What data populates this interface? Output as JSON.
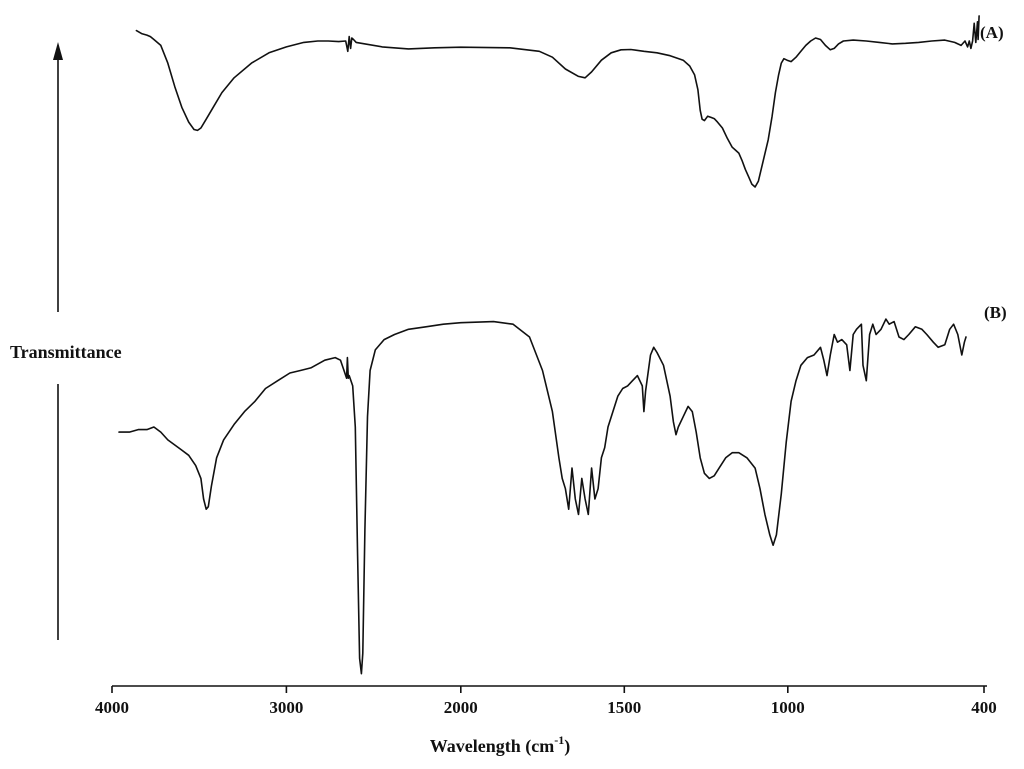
{
  "chart_data": {
    "type": "line",
    "title": "",
    "xlabel_main": "Wavelength (cm",
    "xlabel_sup": "-1",
    "xlabel_close": ")",
    "ylabel": "Transmittance",
    "x_reversed": true,
    "xlim": [
      4000,
      400
    ],
    "xticks": [
      4000,
      3000,
      2000,
      1500,
      1000,
      400
    ],
    "xtick_labels": [
      "4000",
      "3000",
      "2000",
      "1500",
      "1000",
      "400"
    ],
    "x_axis_piecewise": [
      [
        4000,
        0.0
      ],
      [
        2000,
        0.4
      ],
      [
        400,
        1.0
      ]
    ],
    "ylim": [
      0,
      1
    ],
    "grid": false,
    "series": [
      {
        "name": "(A)",
        "points": [
          [
            3860,
            0.93
          ],
          [
            3830,
            0.92
          ],
          [
            3800,
            0.915
          ],
          [
            3780,
            0.91
          ],
          [
            3760,
            0.9
          ],
          [
            3720,
            0.88
          ],
          [
            3680,
            0.82
          ],
          [
            3640,
            0.74
          ],
          [
            3600,
            0.67
          ],
          [
            3560,
            0.62
          ],
          [
            3530,
            0.595
          ],
          [
            3510,
            0.592
          ],
          [
            3490,
            0.6
          ],
          [
            3460,
            0.63
          ],
          [
            3420,
            0.67
          ],
          [
            3370,
            0.72
          ],
          [
            3300,
            0.77
          ],
          [
            3200,
            0.82
          ],
          [
            3100,
            0.855
          ],
          [
            3000,
            0.875
          ],
          [
            2900,
            0.89
          ],
          [
            2820,
            0.895
          ],
          [
            2760,
            0.895
          ],
          [
            2700,
            0.893
          ],
          [
            2660,
            0.895
          ],
          [
            2648,
            0.86
          ],
          [
            2640,
            0.91
          ],
          [
            2632,
            0.87
          ],
          [
            2625,
            0.905
          ],
          [
            2615,
            0.9
          ],
          [
            2600,
            0.89
          ],
          [
            2450,
            0.875
          ],
          [
            2300,
            0.868
          ],
          [
            2150,
            0.872
          ],
          [
            2000,
            0.874
          ],
          [
            1850,
            0.872
          ],
          [
            1760,
            0.86
          ],
          [
            1720,
            0.84
          ],
          [
            1680,
            0.8
          ],
          [
            1640,
            0.775
          ],
          [
            1620,
            0.77
          ],
          [
            1600,
            0.79
          ],
          [
            1570,
            0.83
          ],
          [
            1540,
            0.855
          ],
          [
            1510,
            0.865
          ],
          [
            1480,
            0.866
          ],
          [
            1440,
            0.86
          ],
          [
            1400,
            0.855
          ],
          [
            1360,
            0.845
          ],
          [
            1320,
            0.83
          ],
          [
            1300,
            0.81
          ],
          [
            1285,
            0.78
          ],
          [
            1275,
            0.73
          ],
          [
            1268,
            0.66
          ],
          [
            1262,
            0.63
          ],
          [
            1255,
            0.625
          ],
          [
            1245,
            0.64
          ],
          [
            1235,
            0.636
          ],
          [
            1225,
            0.632
          ],
          [
            1215,
            0.62
          ],
          [
            1200,
            0.6
          ],
          [
            1185,
            0.565
          ],
          [
            1170,
            0.535
          ],
          [
            1160,
            0.525
          ],
          [
            1150,
            0.515
          ],
          [
            1140,
            0.49
          ],
          [
            1130,
            0.46
          ],
          [
            1120,
            0.435
          ],
          [
            1110,
            0.41
          ],
          [
            1100,
            0.4
          ],
          [
            1090,
            0.42
          ],
          [
            1075,
            0.49
          ],
          [
            1060,
            0.56
          ],
          [
            1048,
            0.64
          ],
          [
            1038,
            0.72
          ],
          [
            1028,
            0.78
          ],
          [
            1020,
            0.82
          ],
          [
            1012,
            0.835
          ],
          [
            1002,
            0.83
          ],
          [
            990,
            0.825
          ],
          [
            975,
            0.84
          ],
          [
            960,
            0.86
          ],
          [
            945,
            0.88
          ],
          [
            930,
            0.895
          ],
          [
            915,
            0.905
          ],
          [
            900,
            0.9
          ],
          [
            885,
            0.88
          ],
          [
            870,
            0.865
          ],
          [
            858,
            0.87
          ],
          [
            845,
            0.885
          ],
          [
            830,
            0.895
          ],
          [
            800,
            0.898
          ],
          [
            760,
            0.895
          ],
          [
            720,
            0.89
          ],
          [
            680,
            0.885
          ],
          [
            640,
            0.887
          ],
          [
            600,
            0.89
          ],
          [
            560,
            0.895
          ],
          [
            520,
            0.898
          ],
          [
            490,
            0.89
          ],
          [
            470,
            0.88
          ],
          [
            458,
            0.895
          ],
          [
            450,
            0.875
          ],
          [
            445,
            0.895
          ],
          [
            440,
            0.87
          ],
          [
            435,
            0.895
          ],
          [
            430,
            0.955
          ],
          [
            425,
            0.89
          ],
          [
            420,
            0.96
          ],
          [
            418,
            0.9
          ],
          [
            415,
            0.98
          ]
        ]
      },
      {
        "name": "(B)",
        "points": [
          [
            3960,
            0.49
          ],
          [
            3900,
            0.49
          ],
          [
            3850,
            0.495
          ],
          [
            3800,
            0.495
          ],
          [
            3760,
            0.5
          ],
          [
            3720,
            0.49
          ],
          [
            3680,
            0.475
          ],
          [
            3640,
            0.465
          ],
          [
            3600,
            0.455
          ],
          [
            3560,
            0.445
          ],
          [
            3520,
            0.425
          ],
          [
            3490,
            0.4
          ],
          [
            3475,
            0.36
          ],
          [
            3460,
            0.34
          ],
          [
            3448,
            0.345
          ],
          [
            3430,
            0.385
          ],
          [
            3400,
            0.44
          ],
          [
            3360,
            0.475
          ],
          [
            3300,
            0.505
          ],
          [
            3240,
            0.53
          ],
          [
            3180,
            0.55
          ],
          [
            3120,
            0.575
          ],
          [
            3050,
            0.59
          ],
          [
            2980,
            0.605
          ],
          [
            2920,
            0.61
          ],
          [
            2860,
            0.615
          ],
          [
            2780,
            0.63
          ],
          [
            2720,
            0.635
          ],
          [
            2690,
            0.63
          ],
          [
            2670,
            0.61
          ],
          [
            2655,
            0.595
          ],
          [
            2650,
            0.635
          ],
          [
            2645,
            0.595
          ],
          [
            2640,
            0.6
          ],
          [
            2620,
            0.58
          ],
          [
            2605,
            0.5
          ],
          [
            2592,
            0.25
          ],
          [
            2580,
            0.05
          ],
          [
            2570,
            0.02
          ],
          [
            2562,
            0.06
          ],
          [
            2550,
            0.3
          ],
          [
            2535,
            0.52
          ],
          [
            2520,
            0.61
          ],
          [
            2490,
            0.65
          ],
          [
            2440,
            0.67
          ],
          [
            2380,
            0.68
          ],
          [
            2300,
            0.69
          ],
          [
            2200,
            0.695
          ],
          [
            2100,
            0.7
          ],
          [
            2000,
            0.703
          ],
          [
            1900,
            0.705
          ],
          [
            1840,
            0.7
          ],
          [
            1790,
            0.675
          ],
          [
            1750,
            0.61
          ],
          [
            1720,
            0.53
          ],
          [
            1700,
            0.44
          ],
          [
            1690,
            0.4
          ],
          [
            1680,
            0.38
          ],
          [
            1670,
            0.34
          ],
          [
            1660,
            0.42
          ],
          [
            1650,
            0.36
          ],
          [
            1640,
            0.33
          ],
          [
            1630,
            0.4
          ],
          [
            1620,
            0.36
          ],
          [
            1610,
            0.33
          ],
          [
            1600,
            0.42
          ],
          [
            1590,
            0.36
          ],
          [
            1580,
            0.38
          ],
          [
            1570,
            0.44
          ],
          [
            1560,
            0.46
          ],
          [
            1550,
            0.5
          ],
          [
            1535,
            0.53
          ],
          [
            1520,
            0.56
          ],
          [
            1505,
            0.575
          ],
          [
            1490,
            0.58
          ],
          [
            1475,
            0.59
          ],
          [
            1460,
            0.6
          ],
          [
            1445,
            0.58
          ],
          [
            1440,
            0.53
          ],
          [
            1435,
            0.57
          ],
          [
            1420,
            0.64
          ],
          [
            1410,
            0.655
          ],
          [
            1400,
            0.645
          ],
          [
            1380,
            0.62
          ],
          [
            1360,
            0.56
          ],
          [
            1350,
            0.51
          ],
          [
            1342,
            0.485
          ],
          [
            1335,
            0.5
          ],
          [
            1320,
            0.52
          ],
          [
            1305,
            0.54
          ],
          [
            1292,
            0.53
          ],
          [
            1280,
            0.49
          ],
          [
            1268,
            0.44
          ],
          [
            1255,
            0.41
          ],
          [
            1240,
            0.4
          ],
          [
            1225,
            0.405
          ],
          [
            1210,
            0.42
          ],
          [
            1190,
            0.44
          ],
          [
            1170,
            0.45
          ],
          [
            1150,
            0.45
          ],
          [
            1125,
            0.44
          ],
          [
            1100,
            0.42
          ],
          [
            1085,
            0.38
          ],
          [
            1070,
            0.33
          ],
          [
            1055,
            0.29
          ],
          [
            1045,
            0.27
          ],
          [
            1035,
            0.29
          ],
          [
            1020,
            0.37
          ],
          [
            1005,
            0.47
          ],
          [
            990,
            0.55
          ],
          [
            975,
            0.59
          ],
          [
            960,
            0.62
          ],
          [
            940,
            0.635
          ],
          [
            920,
            0.64
          ],
          [
            900,
            0.655
          ],
          [
            890,
            0.63
          ],
          [
            880,
            0.6
          ],
          [
            870,
            0.64
          ],
          [
            858,
            0.68
          ],
          [
            848,
            0.665
          ],
          [
            835,
            0.67
          ],
          [
            820,
            0.66
          ],
          [
            810,
            0.61
          ],
          [
            800,
            0.68
          ],
          [
            790,
            0.69
          ],
          [
            775,
            0.7
          ],
          [
            770,
            0.62
          ],
          [
            760,
            0.59
          ],
          [
            750,
            0.68
          ],
          [
            740,
            0.7
          ],
          [
            730,
            0.68
          ],
          [
            715,
            0.69
          ],
          [
            700,
            0.71
          ],
          [
            690,
            0.7
          ],
          [
            675,
            0.705
          ],
          [
            660,
            0.675
          ],
          [
            645,
            0.67
          ],
          [
            630,
            0.68
          ],
          [
            610,
            0.695
          ],
          [
            590,
            0.69
          ],
          [
            575,
            0.68
          ],
          [
            555,
            0.665
          ],
          [
            540,
            0.655
          ],
          [
            520,
            0.66
          ],
          [
            505,
            0.69
          ],
          [
            493,
            0.7
          ],
          [
            480,
            0.68
          ],
          [
            468,
            0.64
          ],
          [
            460,
            0.665
          ],
          [
            455,
            0.675
          ]
        ]
      }
    ],
    "axis_arrow": "up",
    "legend": "none"
  }
}
